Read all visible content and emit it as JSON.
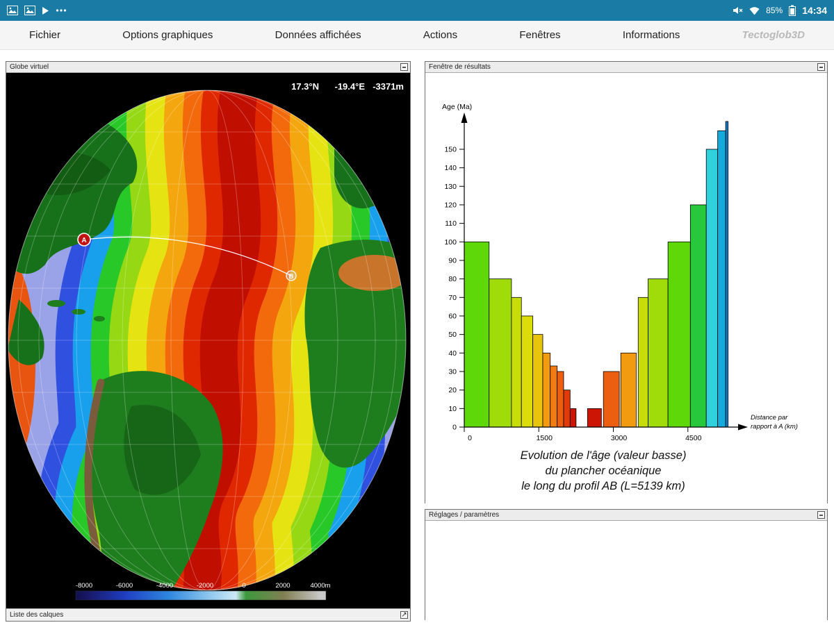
{
  "status_bar": {
    "time": "14:34",
    "battery_percent": "85%",
    "icons": {
      "left": [
        "gallery-icon",
        "gallery-icon",
        "play-icon",
        "more-icon"
      ],
      "right": [
        "mute-icon",
        "wifi-icon",
        "battery-icon"
      ]
    }
  },
  "menu": {
    "items": [
      "Fichier",
      "Options graphiques",
      "Données affichées",
      "Actions",
      "Fenêtres",
      "Informations"
    ],
    "app_title": "Tectoglob3D"
  },
  "globe_panel": {
    "title": "Globe virtuel",
    "coords": {
      "lat": "17.3°N",
      "lon": "-19.4°E",
      "alt": "-3371m"
    },
    "markers": [
      "A",
      "B"
    ],
    "legend": {
      "labels": [
        "-8000",
        "-6000",
        "-4000",
        "-2000",
        "0",
        "2000",
        "4000m"
      ]
    },
    "layers_bar": "Liste des calques"
  },
  "results_panel": {
    "title": "Fenêtre de résultats",
    "caption_lines": [
      "Evolution de l'âge  (valeur basse)",
      "du plancher océanique",
      "le long du profil AB (L=5139 km)"
    ]
  },
  "settings_panel": {
    "title": "Réglages / paramètres"
  },
  "chart_data": {
    "type": "bar",
    "title": "Evolution de l'âge (valeur basse) du plancher océanique le long du profil AB (L=5139 km)",
    "ylabel": "Age (Ma)",
    "xlabel": "Distance par rapport à A (km)",
    "xlabel_lines": [
      "Distance par",
      "rapport à A (km)"
    ],
    "ylim": [
      0,
      165
    ],
    "xlim": [
      0,
      5600
    ],
    "yticks": [
      0,
      10,
      20,
      30,
      40,
      50,
      60,
      70,
      80,
      90,
      100,
      110,
      120,
      130,
      140,
      150
    ],
    "xticks": [
      0,
      1500,
      3000,
      4500
    ],
    "profile_length_km": 5139,
    "bars": [
      {
        "x0": 0,
        "x1": 500,
        "age": 100,
        "color": "#5FD80A"
      },
      {
        "x0": 500,
        "x1": 950,
        "age": 80,
        "color": "#A0DC0A"
      },
      {
        "x0": 950,
        "x1": 1150,
        "age": 70,
        "color": "#C8DC0A"
      },
      {
        "x0": 1150,
        "x1": 1380,
        "age": 60,
        "color": "#DCDC0A"
      },
      {
        "x0": 1380,
        "x1": 1580,
        "age": 50,
        "color": "#E8C40C"
      },
      {
        "x0": 1580,
        "x1": 1730,
        "age": 40,
        "color": "#F29A10"
      },
      {
        "x0": 1730,
        "x1": 1870,
        "age": 33,
        "color": "#F07C12"
      },
      {
        "x0": 1870,
        "x1": 2000,
        "age": 30,
        "color": "#EC5E10"
      },
      {
        "x0": 2000,
        "x1": 2130,
        "age": 20,
        "color": "#E03A0C"
      },
      {
        "x0": 2130,
        "x1": 2250,
        "age": 10,
        "color": "#CC1504"
      },
      {
        "x0": 2480,
        "x1": 2760,
        "age": 10,
        "color": "#CC1504"
      },
      {
        "x0": 2800,
        "x1": 3120,
        "age": 30,
        "color": "#EC5E10"
      },
      {
        "x0": 3150,
        "x1": 3460,
        "age": 40,
        "color": "#F29A10"
      },
      {
        "x0": 3500,
        "x1": 3700,
        "age": 70,
        "color": "#C8DC0A"
      },
      {
        "x0": 3700,
        "x1": 4100,
        "age": 80,
        "color": "#A0DC0A"
      },
      {
        "x0": 4100,
        "x1": 4550,
        "age": 100,
        "color": "#5FD80A"
      },
      {
        "x0": 4550,
        "x1": 4870,
        "age": 120,
        "color": "#28C83C"
      },
      {
        "x0": 4870,
        "x1": 5100,
        "age": 150,
        "color": "#30D0DC"
      },
      {
        "x0": 5100,
        "x1": 5260,
        "age": 160,
        "color": "#14AADC"
      },
      {
        "x0": 5260,
        "x1": 5310,
        "age": 165,
        "color": "#0E7EC8"
      }
    ]
  }
}
